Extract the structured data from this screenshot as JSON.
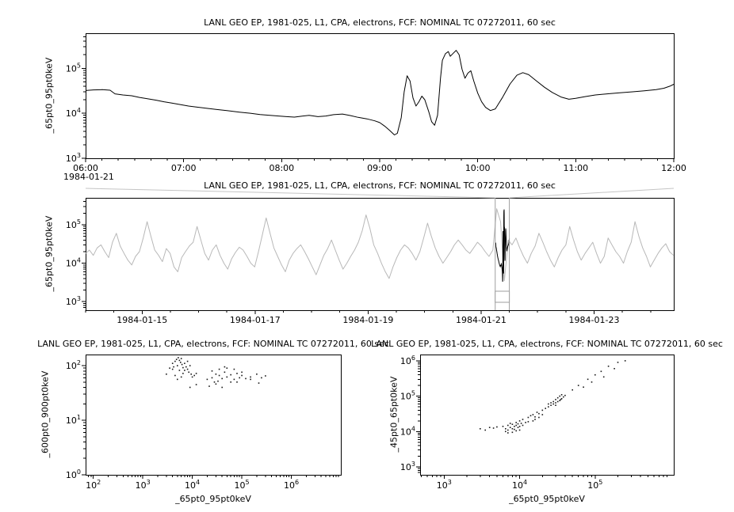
{
  "page": {
    "background": "#ffffff"
  },
  "chart_data": [
    {
      "name": "detail-timeseries",
      "type": "line",
      "title": "LANL GEO EP, 1981-025, L1, CPA, electrons, FCF: NOMINAL TC 07272011, 60 sec",
      "xlabel": "",
      "ylabel": "_65pt0_95pt0keV",
      "x_context": "1984-01-21",
      "xlog": false,
      "ylog": true,
      "xlim": [
        6,
        12
      ],
      "ylim": [
        1000,
        600000
      ],
      "xminor": 0.1666667,
      "xticks": [
        {
          "v": 6,
          "label": "06:00"
        },
        {
          "v": 7,
          "label": "07:00"
        },
        {
          "v": 8,
          "label": "08:00"
        },
        {
          "v": 9,
          "label": "09:00"
        },
        {
          "v": 10,
          "label": "10:00"
        },
        {
          "v": 11,
          "label": "11:00"
        },
        {
          "v": 12,
          "label": "12:00"
        }
      ],
      "yticks_exp": [
        3,
        4,
        5
      ],
      "color": "#000000",
      "points": [
        [
          6.0,
          32000
        ],
        [
          6.08,
          33000
        ],
        [
          6.17,
          33500
        ],
        [
          6.25,
          32500
        ],
        [
          6.3,
          27000
        ],
        [
          6.38,
          25500
        ],
        [
          6.47,
          24500
        ],
        [
          6.55,
          22500
        ],
        [
          6.63,
          21000
        ],
        [
          6.72,
          19500
        ],
        [
          6.8,
          18000
        ],
        [
          6.88,
          16800
        ],
        [
          6.97,
          15500
        ],
        [
          7.05,
          14500
        ],
        [
          7.13,
          13800
        ],
        [
          7.22,
          13000
        ],
        [
          7.33,
          12200
        ],
        [
          7.45,
          11400
        ],
        [
          7.57,
          10600
        ],
        [
          7.68,
          10000
        ],
        [
          7.78,
          9400
        ],
        [
          7.88,
          9000
        ],
        [
          7.97,
          8700
        ],
        [
          8.05,
          8400
        ],
        [
          8.13,
          8200
        ],
        [
          8.2,
          8600
        ],
        [
          8.28,
          9000
        ],
        [
          8.37,
          8400
        ],
        [
          8.45,
          8700
        ],
        [
          8.53,
          9300
        ],
        [
          8.62,
          9600
        ],
        [
          8.7,
          8900
        ],
        [
          8.78,
          8100
        ],
        [
          8.87,
          7500
        ],
        [
          8.95,
          6800
        ],
        [
          9.0,
          6200
        ],
        [
          9.05,
          5200
        ],
        [
          9.1,
          4200
        ],
        [
          9.15,
          3300
        ],
        [
          9.18,
          3600
        ],
        [
          9.22,
          8000
        ],
        [
          9.25,
          30000
        ],
        [
          9.28,
          68000
        ],
        [
          9.31,
          52000
        ],
        [
          9.34,
          22000
        ],
        [
          9.37,
          14500
        ],
        [
          9.4,
          18000
        ],
        [
          9.43,
          24000
        ],
        [
          9.46,
          20000
        ],
        [
          9.5,
          11000
        ],
        [
          9.53,
          6500
        ],
        [
          9.56,
          5400
        ],
        [
          9.59,
          9000
        ],
        [
          9.62,
          60000
        ],
        [
          9.64,
          150000
        ],
        [
          9.67,
          210000
        ],
        [
          9.7,
          235000
        ],
        [
          9.72,
          185000
        ],
        [
          9.75,
          215000
        ],
        [
          9.78,
          250000
        ],
        [
          9.81,
          200000
        ],
        [
          9.84,
          95000
        ],
        [
          9.87,
          60000
        ],
        [
          9.9,
          78000
        ],
        [
          9.93,
          88000
        ],
        [
          9.96,
          52000
        ],
        [
          10.0,
          28000
        ],
        [
          10.04,
          18000
        ],
        [
          10.08,
          13500
        ],
        [
          10.13,
          11500
        ],
        [
          10.18,
          12500
        ],
        [
          10.25,
          22000
        ],
        [
          10.33,
          45000
        ],
        [
          10.4,
          70000
        ],
        [
          10.46,
          80000
        ],
        [
          10.52,
          72000
        ],
        [
          10.6,
          52000
        ],
        [
          10.68,
          38000
        ],
        [
          10.76,
          29000
        ],
        [
          10.85,
          23000
        ],
        [
          10.93,
          20500
        ],
        [
          11.0,
          21500
        ],
        [
          11.1,
          23500
        ],
        [
          11.2,
          25500
        ],
        [
          11.32,
          27000
        ],
        [
          11.45,
          28500
        ],
        [
          11.58,
          30000
        ],
        [
          11.7,
          31500
        ],
        [
          11.82,
          33500
        ],
        [
          11.9,
          36000
        ],
        [
          11.96,
          40000
        ],
        [
          12.0,
          44000
        ]
      ]
    },
    {
      "name": "overview-timeseries",
      "type": "line",
      "title": "LANL GEO EP, 1981-025, L1, CPA, electrons, FCF: NOMINAL TC 07272011, 60 sec",
      "xlabel": "",
      "ylabel": "_65pt0_95pt0keV",
      "xlog": false,
      "ylog": true,
      "xlim": [
        0,
        10.41
      ],
      "ylim": [
        600,
        500000
      ],
      "xminor": 0.5,
      "xticks": [
        {
          "v": 1,
          "label": "1984-01-15"
        },
        {
          "v": 3,
          "label": "1984-01-17"
        },
        {
          "v": 5,
          "label": "1984-01-19"
        },
        {
          "v": 7,
          "label": "1984-01-21"
        },
        {
          "v": 9,
          "label": "1984-01-23"
        }
      ],
      "yticks_exp": [
        3,
        4,
        5
      ],
      "color": "#b8b8b8",
      "x0": 0,
      "dx": 0.068,
      "y_values": [
        18000,
        22000,
        16000,
        25000,
        30000,
        20000,
        14000,
        35000,
        60000,
        28000,
        18000,
        12000,
        9000,
        15000,
        20000,
        45000,
        120000,
        50000,
        22000,
        16000,
        11000,
        24000,
        18000,
        8000,
        6000,
        14000,
        20000,
        28000,
        35000,
        90000,
        40000,
        18000,
        12000,
        22000,
        30000,
        16000,
        10000,
        7000,
        13000,
        19000,
        26000,
        22000,
        15000,
        10000,
        8000,
        20000,
        55000,
        150000,
        60000,
        25000,
        15000,
        9000,
        6000,
        12000,
        18000,
        24000,
        30000,
        20000,
        13000,
        8000,
        5000,
        9000,
        16000,
        24000,
        40000,
        22000,
        12000,
        7000,
        10000,
        15000,
        22000,
        35000,
        70000,
        180000,
        80000,
        30000,
        18000,
        10000,
        6000,
        4000,
        8000,
        14000,
        22000,
        30000,
        25000,
        18000,
        12000,
        20000,
        45000,
        110000,
        50000,
        25000,
        15000,
        10000,
        14000,
        20000,
        30000,
        40000,
        30000,
        22000,
        18000,
        25000,
        35000,
        28000,
        20000,
        15000,
        22000,
        260000,
        120000,
        3500,
        40000,
        30000,
        45000,
        25000,
        15000,
        10000,
        18000,
        28000,
        60000,
        35000,
        20000,
        12000,
        8000,
        14000,
        22000,
        30000,
        90000,
        40000,
        20000,
        12000,
        18000,
        25000,
        35000,
        18000,
        10000,
        15000,
        45000,
        30000,
        20000,
        15000,
        10000,
        20000,
        35000,
        120000,
        50000,
        25000,
        15000,
        8000,
        12000,
        18000,
        25000,
        32000,
        20000,
        16000
      ],
      "selection": {
        "day_start": 7.25,
        "day_end": 7.5
      },
      "overlay": {
        "source": 0,
        "day_offset": 7,
        "hours_per_day": 24,
        "color": "#000000"
      },
      "selection_color": "#9e9e9e",
      "connector_color": "#c4c4c4"
    },
    {
      "name": "scatter-600-900",
      "type": "scatter",
      "title": "LANL GEO EP, 1981-025, L1, CPA, electrons, FCF: NOMINAL TC 07272011, 60 sec",
      "xlabel": "_65pt0_95pt0keV",
      "ylabel": "_600pt0_900pt0keV",
      "xlog": true,
      "ylog": true,
      "xlim": [
        70,
        10000000
      ],
      "ylim": [
        1,
        160
      ],
      "xticks_exp": [
        2,
        3,
        4,
        5,
        6
      ],
      "yticks_exp": [
        0,
        1,
        2
      ],
      "color": "#1a1a1a",
      "points": [
        [
          3000,
          70
        ],
        [
          3500,
          90
        ],
        [
          4000,
          110
        ],
        [
          4200,
          95
        ],
        [
          4500,
          120
        ],
        [
          4800,
          130
        ],
        [
          5000,
          100
        ],
        [
          5200,
          140
        ],
        [
          5500,
          125
        ],
        [
          5800,
          115
        ],
        [
          6000,
          135
        ],
        [
          6200,
          105
        ],
        [
          6500,
          92
        ],
        [
          7000,
          82
        ],
        [
          7500,
          95
        ],
        [
          8000,
          86
        ],
        [
          8500,
          76
        ],
        [
          9000,
          100
        ],
        [
          9500,
          70
        ],
        [
          10000,
          62
        ],
        [
          11000,
          66
        ],
        [
          12000,
          72
        ],
        [
          6000,
          62
        ],
        [
          5000,
          56
        ],
        [
          4500,
          66
        ],
        [
          7000,
          110
        ],
        [
          8000,
          120
        ],
        [
          5500,
          82
        ],
        [
          6500,
          72
        ],
        [
          4000,
          86
        ],
        [
          20000,
          56
        ],
        [
          25000,
          60
        ],
        [
          30000,
          70
        ],
        [
          35000,
          66
        ],
        [
          40000,
          58
        ],
        [
          45000,
          76
        ],
        [
          50000,
          62
        ],
        [
          60000,
          68
        ],
        [
          70000,
          56
        ],
        [
          80000,
          72
        ],
        [
          90000,
          60
        ],
        [
          100000,
          66
        ],
        [
          120000,
          58
        ],
        [
          150000,
          62
        ],
        [
          200000,
          70
        ],
        [
          250000,
          60
        ],
        [
          300000,
          65
        ],
        [
          220000,
          48
        ],
        [
          30000,
          46
        ],
        [
          40000,
          40
        ],
        [
          60000,
          50
        ],
        [
          25000,
          80
        ],
        [
          35000,
          86
        ],
        [
          50000,
          90
        ],
        [
          80000,
          50
        ],
        [
          150000,
          56
        ],
        [
          100000,
          76
        ],
        [
          70000,
          86
        ],
        [
          45000,
          95
        ],
        [
          28000,
          50
        ],
        [
          22000,
          42
        ],
        [
          33000,
          52
        ],
        [
          12000,
          45
        ],
        [
          9000,
          40
        ]
      ]
    },
    {
      "name": "scatter-45-65",
      "type": "scatter",
      "title": "LANL GEO EP, 1981-025, L1, CPA, electrons, FCF: NOMINAL TC 07272011, 60 sec",
      "xlabel": "_65pt0_95pt0keV",
      "ylabel": "_45pt0_65pt0keV",
      "xlog": true,
      "ylog": true,
      "xlim": [
        480,
        1100000
      ],
      "ylim": [
        600,
        1500000
      ],
      "xticks_exp": [
        3,
        4,
        5
      ],
      "yticks_exp": [
        3,
        4,
        5,
        6
      ],
      "color": "#1a1a1a",
      "points": [
        [
          3000,
          12000
        ],
        [
          3500,
          11000
        ],
        [
          4000,
          13000
        ],
        [
          4500,
          12500
        ],
        [
          5000,
          13500
        ],
        [
          6000,
          14000
        ],
        [
          6500,
          12000
        ],
        [
          7000,
          15000
        ],
        [
          7000,
          11000
        ],
        [
          7500,
          13000
        ],
        [
          7500,
          17000
        ],
        [
          8000,
          12000
        ],
        [
          8000,
          16000
        ],
        [
          8500,
          14000
        ],
        [
          8500,
          11500
        ],
        [
          9000,
          15000
        ],
        [
          9000,
          18000
        ],
        [
          9500,
          13000
        ],
        [
          9500,
          16500
        ],
        [
          10000,
          14000
        ],
        [
          10000,
          20000
        ],
        [
          10500,
          17000
        ],
        [
          11000,
          15000
        ],
        [
          11000,
          22000
        ],
        [
          12000,
          18000
        ],
        [
          8000,
          9500
        ],
        [
          7000,
          9200
        ],
        [
          6500,
          10000
        ],
        [
          9000,
          10500
        ],
        [
          10000,
          11000
        ],
        [
          13000,
          25000
        ],
        [
          14000,
          28000
        ],
        [
          15000,
          30000
        ],
        [
          16000,
          26000
        ],
        [
          17000,
          35000
        ],
        [
          18000,
          32000
        ],
        [
          20000,
          40000
        ],
        [
          22000,
          45000
        ],
        [
          24000,
          50000
        ],
        [
          26000,
          55000
        ],
        [
          28000,
          60000
        ],
        [
          30000,
          65000
        ],
        [
          30000,
          80000
        ],
        [
          32000,
          70000
        ],
        [
          32000,
          90000
        ],
        [
          34000,
          75000
        ],
        [
          34000,
          100000
        ],
        [
          36000,
          85000
        ],
        [
          36000,
          110000
        ],
        [
          38000,
          95000
        ],
        [
          40000,
          105000
        ],
        [
          28000,
          70000
        ],
        [
          26000,
          65000
        ],
        [
          24000,
          60000
        ],
        [
          30000,
          55000
        ],
        [
          35000,
          80000
        ],
        [
          50000,
          150000
        ],
        [
          60000,
          200000
        ],
        [
          80000,
          300000
        ],
        [
          100000,
          400000
        ],
        [
          120000,
          500000
        ],
        [
          150000,
          700000
        ],
        [
          200000,
          900000
        ],
        [
          250000,
          1000000
        ],
        [
          90000,
          250000
        ],
        [
          70000,
          180000
        ],
        [
          130000,
          350000
        ],
        [
          180000,
          600000
        ],
        [
          15000,
          20000
        ],
        [
          20000,
          30000
        ],
        [
          18000,
          25000
        ],
        [
          16000,
          22000
        ],
        [
          13000,
          19000
        ]
      ]
    }
  ]
}
